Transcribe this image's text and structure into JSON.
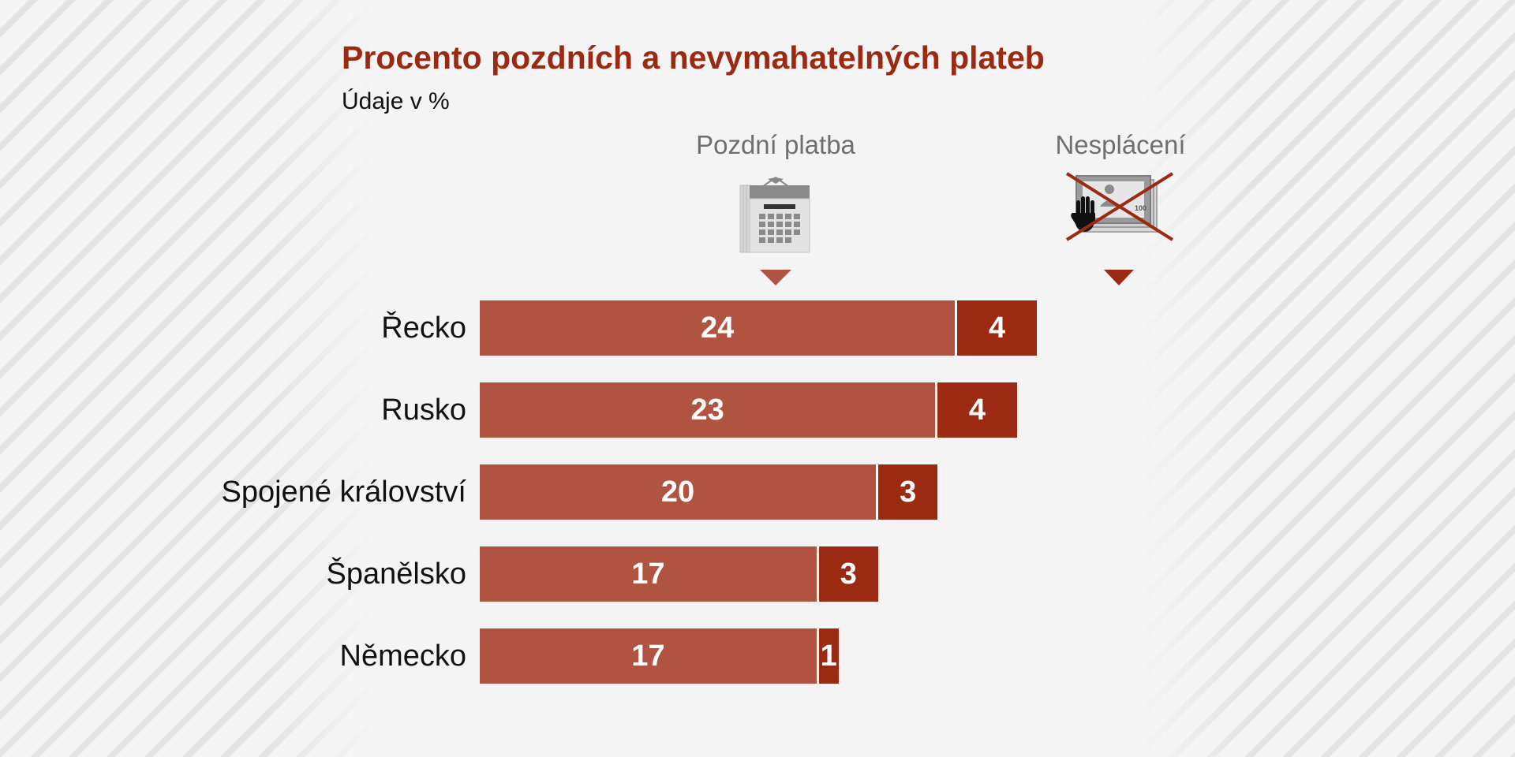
{
  "title": "Procento pozdních a nevymahatelných plateb",
  "subtitle": "Údaje v %",
  "legend": {
    "late_label": "Pozdní platba",
    "default_label": "Nesplácení",
    "banknote_text": "100"
  },
  "colors": {
    "late": "#b05441",
    "default": "#9c2a12",
    "title": "#9c2a12"
  },
  "chart_data": {
    "type": "bar",
    "orientation": "horizontal",
    "stacked": true,
    "title": "Procento pozdních a nevymahatelných plateb",
    "subtitle": "Údaje v %",
    "categories": [
      "Řecko",
      "Rusko",
      "Spojené království",
      "Španělsko",
      "Německo"
    ],
    "series": [
      {
        "name": "Pozdní platba",
        "values": [
          24,
          23,
          20,
          17,
          17
        ]
      },
      {
        "name": "Nesplácení",
        "values": [
          4,
          4,
          3,
          3,
          1
        ]
      }
    ],
    "legend": "top",
    "grid": false
  }
}
